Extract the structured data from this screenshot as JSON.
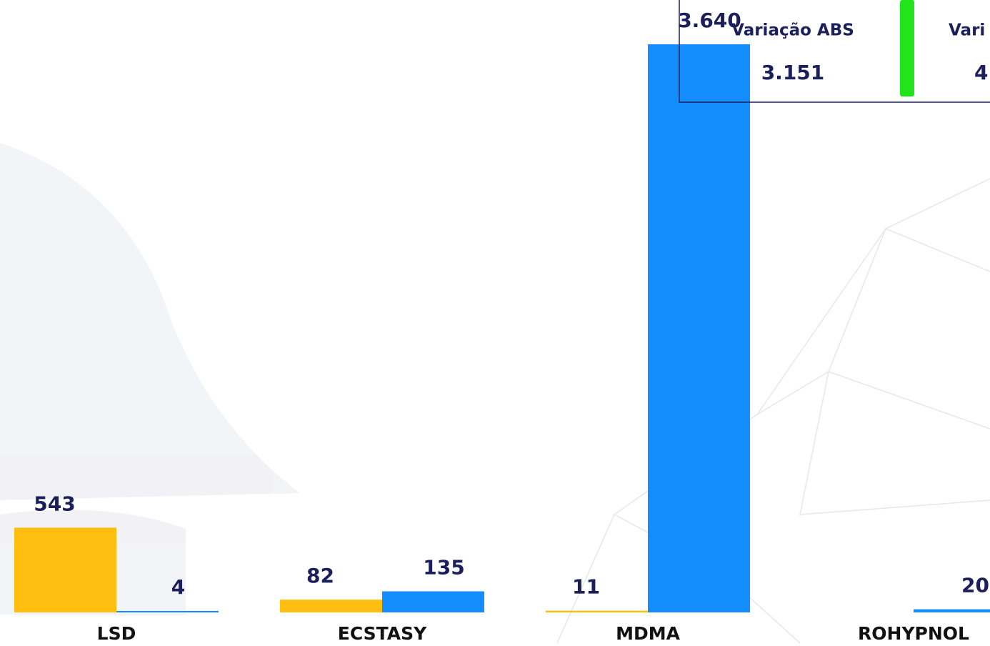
{
  "chart_data": {
    "type": "bar",
    "categories": [
      "LSD",
      "ECSTASY",
      "MDMA",
      "ROHYPNOL"
    ],
    "series": [
      {
        "color": "#FDBE10",
        "values": [
          543,
          82,
          11,
          null
        ],
        "value_labels": [
          "543",
          "82",
          "11",
          null
        ]
      },
      {
        "color": "#148DFF",
        "values": [
          4,
          135,
          3640,
          20
        ],
        "value_labels": [
          "4",
          "135",
          "3.640",
          "20"
        ]
      }
    ],
    "cards": [
      {
        "label": "Variação ABS",
        "value": "3.151"
      },
      {
        "label": "Vari",
        "value": "4"
      }
    ]
  }
}
